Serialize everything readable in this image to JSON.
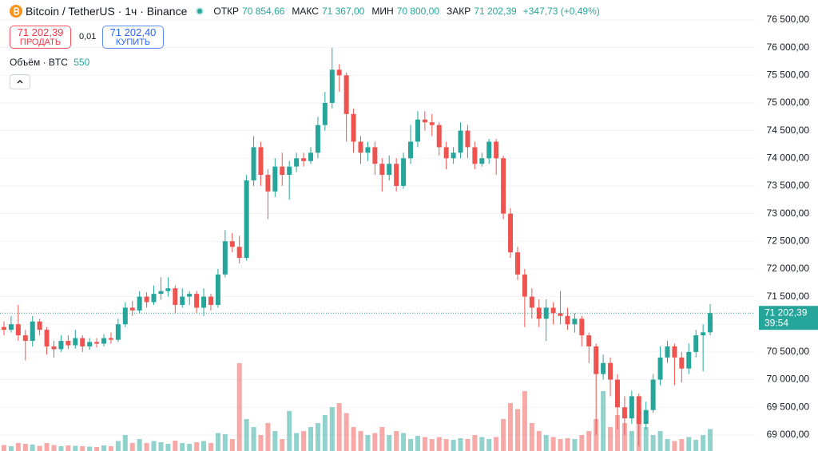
{
  "header": {
    "timeframe_sep": "·",
    "open_label": "ОТКР",
    "open": "70 854,66",
    "high_label": "МАКС",
    "high": "71 367,00",
    "low_label": "МИН",
    "low": "70 800,00",
    "close_label": "ЗАКР",
    "close": "71 202,39",
    "change": "+347,73 (+0,49%)"
  },
  "trade": {
    "sell_price": "71 202,39",
    "sell_label": "ПРОДАТЬ",
    "spread": "0,01",
    "buy_price": "71 202,40",
    "buy_label": "КУПИТЬ"
  },
  "volume_label": "Объём · BTC",
  "chart_data": {
    "type": "candlestick",
    "title": "Bitcoin / TetherUS · 1ч · Binance",
    "open": [
      70950,
      70900,
      71000,
      70800,
      70700,
      71050,
      70900,
      70600,
      70550,
      70700,
      70620,
      70750,
      70600,
      70680,
      70650,
      70750,
      70720,
      71000,
      71300,
      71250,
      71500,
      71400,
      71550,
      71600,
      71650,
      71350,
      71500,
      71550,
      71300,
      71500,
      71350,
      71900,
      72500,
      72400,
      72200,
      73600,
      74200,
      73700,
      73400,
      73850,
      73700,
      73850,
      74000,
      73950,
      74100,
      74600,
      75000,
      75600,
      75500,
      74800,
      74300,
      74100,
      74200,
      73900,
      73700,
      73900,
      73500,
      74000,
      74300,
      74700,
      74650,
      74600,
      74200,
      74000,
      74100,
      74500,
      74200,
      73900,
      74000,
      74300,
      74000,
      73000,
      72300,
      71900,
      71500,
      71300,
      71100,
      71300,
      71200,
      71150,
      71000,
      71100,
      70800,
      70600,
      70100,
      70300,
      70000,
      69500,
      69300,
      69700,
      69200,
      69450,
      70000,
      70400,
      70600,
      70400,
      70200,
      70500,
      70800,
      70854.66
    ],
    "high": [
      71050,
      71150,
      71350,
      70900,
      71150,
      71100,
      70950,
      70700,
      70800,
      70800,
      70900,
      70800,
      70750,
      70750,
      70820,
      70850,
      71100,
      71400,
      71420,
      71600,
      71580,
      71700,
      71850,
      71850,
      71700,
      71650,
      71600,
      71600,
      71650,
      71550,
      72000,
      72700,
      72650,
      72600,
      73700,
      74400,
      74300,
      73800,
      74000,
      74100,
      73950,
      74100,
      74100,
      74200,
      74750,
      75200,
      76000,
      75700,
      75550,
      74900,
      74400,
      74300,
      74300,
      74000,
      74050,
      74000,
      74100,
      74600,
      74850,
      74850,
      74800,
      74650,
      74300,
      74200,
      74650,
      74600,
      74300,
      74100,
      74350,
      74350,
      74050,
      73100,
      72400,
      72000,
      71650,
      71450,
      71450,
      71400,
      71600,
      71300,
      71200,
      71150,
      70850,
      70650,
      70450,
      70400,
      70100,
      69700,
      69800,
      69750,
      69600,
      70100,
      70600,
      70700,
      70650,
      70500,
      70650,
      70900,
      71000,
      71367
    ],
    "low": [
      70800,
      70850,
      70700,
      70350,
      70600,
      70800,
      70450,
      70400,
      70500,
      70550,
      70560,
      70500,
      70540,
      70580,
      70600,
      70650,
      70680,
      70950,
      71150,
      71200,
      71300,
      71350,
      71450,
      71500,
      71200,
      71300,
      71350,
      71200,
      71150,
      71250,
      71300,
      71850,
      72300,
      72100,
      72150,
      73500,
      73500,
      72900,
      73300,
      73500,
      73250,
      73750,
      73850,
      73900,
      74000,
      74500,
      74900,
      75200,
      74300,
      74100,
      73900,
      73950,
      73700,
      73400,
      73600,
      73400,
      73450,
      73900,
      74200,
      74500,
      74400,
      74050,
      73800,
      73900,
      74000,
      74000,
      73800,
      73850,
      73900,
      73700,
      72900,
      72200,
      71800,
      70950,
      71100,
      70950,
      70700,
      71000,
      71000,
      70900,
      70850,
      70600,
      70300,
      69000,
      70000,
      69700,
      69100,
      69000,
      69200,
      68800,
      69100,
      69400,
      69900,
      70300,
      69900,
      69950,
      70100,
      70400,
      70150,
      70800
    ],
    "close": [
      70900,
      71000,
      70800,
      70700,
      71050,
      70900,
      70600,
      70550,
      70700,
      70620,
      70750,
      70600,
      70680,
      70650,
      70750,
      70720,
      71000,
      71300,
      71250,
      71500,
      71400,
      71550,
      71600,
      71650,
      71350,
      71500,
      71550,
      71300,
      71500,
      71350,
      71900,
      72500,
      72400,
      72200,
      73600,
      74200,
      73700,
      73400,
      73850,
      73700,
      73850,
      74000,
      73950,
      74100,
      74600,
      75000,
      75600,
      75500,
      74800,
      74300,
      74100,
      74200,
      73900,
      73700,
      73900,
      73500,
      74000,
      74300,
      74700,
      74650,
      74600,
      74200,
      74000,
      74100,
      74500,
      74200,
      73900,
      74000,
      74300,
      74000,
      73000,
      72300,
      71900,
      71500,
      71300,
      71100,
      71300,
      71200,
      71150,
      71000,
      71100,
      70800,
      70600,
      70100,
      70300,
      70000,
      69500,
      69300,
      69700,
      69200,
      69450,
      70000,
      70400,
      70600,
      70400,
      70200,
      70500,
      70800,
      70854.66,
      71202.39
    ],
    "volume": [
      150,
      120,
      200,
      180,
      160,
      130,
      200,
      150,
      120,
      140,
      130,
      120,
      110,
      100,
      140,
      120,
      250,
      400,
      200,
      300,
      200,
      250,
      220,
      180,
      260,
      200,
      180,
      220,
      250,
      200,
      450,
      420,
      300,
      2200,
      800,
      600,
      400,
      700,
      500,
      300,
      1000,
      450,
      500,
      600,
      700,
      900,
      1100,
      1200,
      950,
      600,
      500,
      400,
      450,
      600,
      400,
      500,
      450,
      300,
      380,
      350,
      300,
      350,
      300,
      280,
      320,
      300,
      400,
      350,
      300,
      350,
      800,
      1200,
      1050,
      1500,
      700,
      500,
      400,
      350,
      300,
      320,
      300,
      400,
      500,
      800,
      1500,
      600,
      900,
      700,
      500,
      1000,
      600,
      400,
      500,
      300,
      250,
      300,
      350,
      280,
      400,
      550
    ],
    "up_color": "#26a69a",
    "down_color": "#ef5350",
    "ylim": [
      68710,
      76860
    ],
    "yticks": [
      {
        "value": 69000,
        "label": "69 000,00"
      },
      {
        "value": 69500,
        "label": "69 500,00"
      },
      {
        "value": 70000,
        "label": "70 000,00"
      },
      {
        "value": 70500,
        "label": "70 500,00"
      },
      {
        "value": 71000,
        "label": "71 000,00"
      },
      {
        "value": 71500,
        "label": "71 500,00"
      },
      {
        "value": 72000,
        "label": "72 000,00"
      },
      {
        "value": 72500,
        "label": "72 500,00"
      },
      {
        "value": 73000,
        "label": "73 000,00"
      },
      {
        "value": 73500,
        "label": "73 500,00"
      },
      {
        "value": 74000,
        "label": "74 000,00"
      },
      {
        "value": 74500,
        "label": "74 500,00"
      },
      {
        "value": 75000,
        "label": "75 000,00"
      },
      {
        "value": 75500,
        "label": "75 500,00"
      },
      {
        "value": 76000,
        "label": "76 000,00"
      },
      {
        "value": 76500,
        "label": "76 500,00"
      }
    ],
    "grid": true,
    "last_label": "71 202,39",
    "countdown": "39:54"
  }
}
